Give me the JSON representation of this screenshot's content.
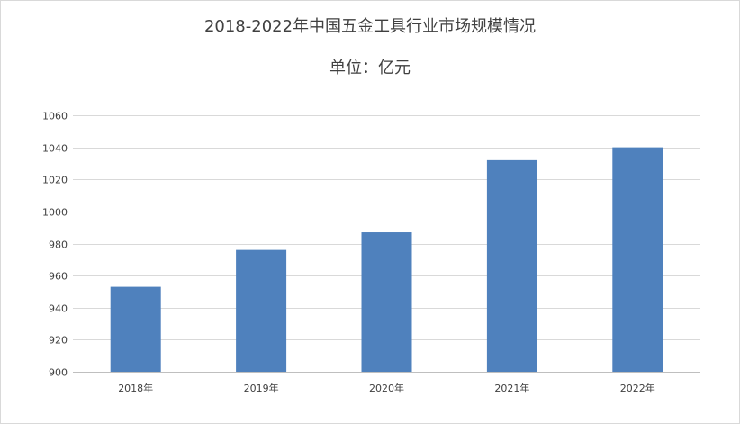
{
  "chart_data": {
    "type": "bar",
    "title": "2018-2022年中国五金工具行业市场规模情况",
    "subtitle": "单位：亿元",
    "categories": [
      "2018年",
      "2019年",
      "2020年",
      "2021年",
      "2022年"
    ],
    "values": [
      953,
      976,
      987,
      1032,
      1040
    ],
    "ylim": [
      900,
      1060
    ],
    "yticks": [
      900,
      920,
      940,
      960,
      980,
      1000,
      1020,
      1040,
      1060
    ],
    "grid": true,
    "bar_color": "#4f81bd",
    "grid_color": "#d9d9d9",
    "axis_color": "#bfbfbf",
    "legend": "none"
  }
}
